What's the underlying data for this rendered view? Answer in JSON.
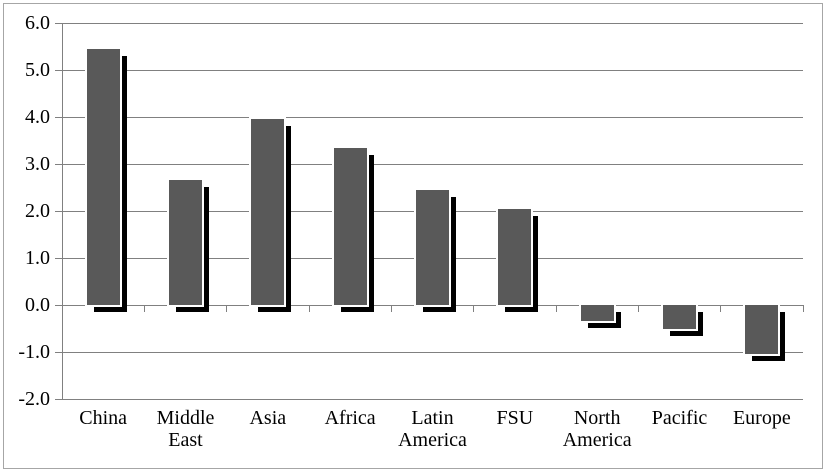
{
  "chart_data": {
    "type": "bar",
    "title": "",
    "xlabel": "",
    "ylabel": "",
    "legend": false,
    "grid": true,
    "categories": [
      "China",
      "Middle East",
      "Asia",
      "Africa",
      "Latin America",
      "FSU",
      "North America",
      "Pacific",
      "Europe"
    ],
    "values": [
      5.45,
      2.65,
      3.95,
      3.35,
      2.45,
      2.05,
      -0.35,
      -0.5,
      -1.05
    ],
    "ylim": [
      -2.0,
      6.0
    ],
    "ytick_step": 1.0,
    "yticks": [
      {
        "value": 6,
        "label": "6.0"
      },
      {
        "value": 5,
        "label": "5.0"
      },
      {
        "value": 4,
        "label": "4.0"
      },
      {
        "value": 3,
        "label": "3.0"
      },
      {
        "value": 2,
        "label": "2.0"
      },
      {
        "value": 1,
        "label": "1.0"
      },
      {
        "value": 0,
        "label": "0.0"
      },
      {
        "value": -1,
        "label": "-1.0"
      },
      {
        "value": -2,
        "label": "-2.0"
      }
    ],
    "style": {
      "bar_color": "#595959",
      "bar_shadow_color": "#000000",
      "bar_outline_color": "#ffffff",
      "gridline_color": "#808080",
      "axis_color": "#808080",
      "text_color": "#000000",
      "background_color": "#ffffff",
      "border_color": "#a6a6a6"
    }
  }
}
